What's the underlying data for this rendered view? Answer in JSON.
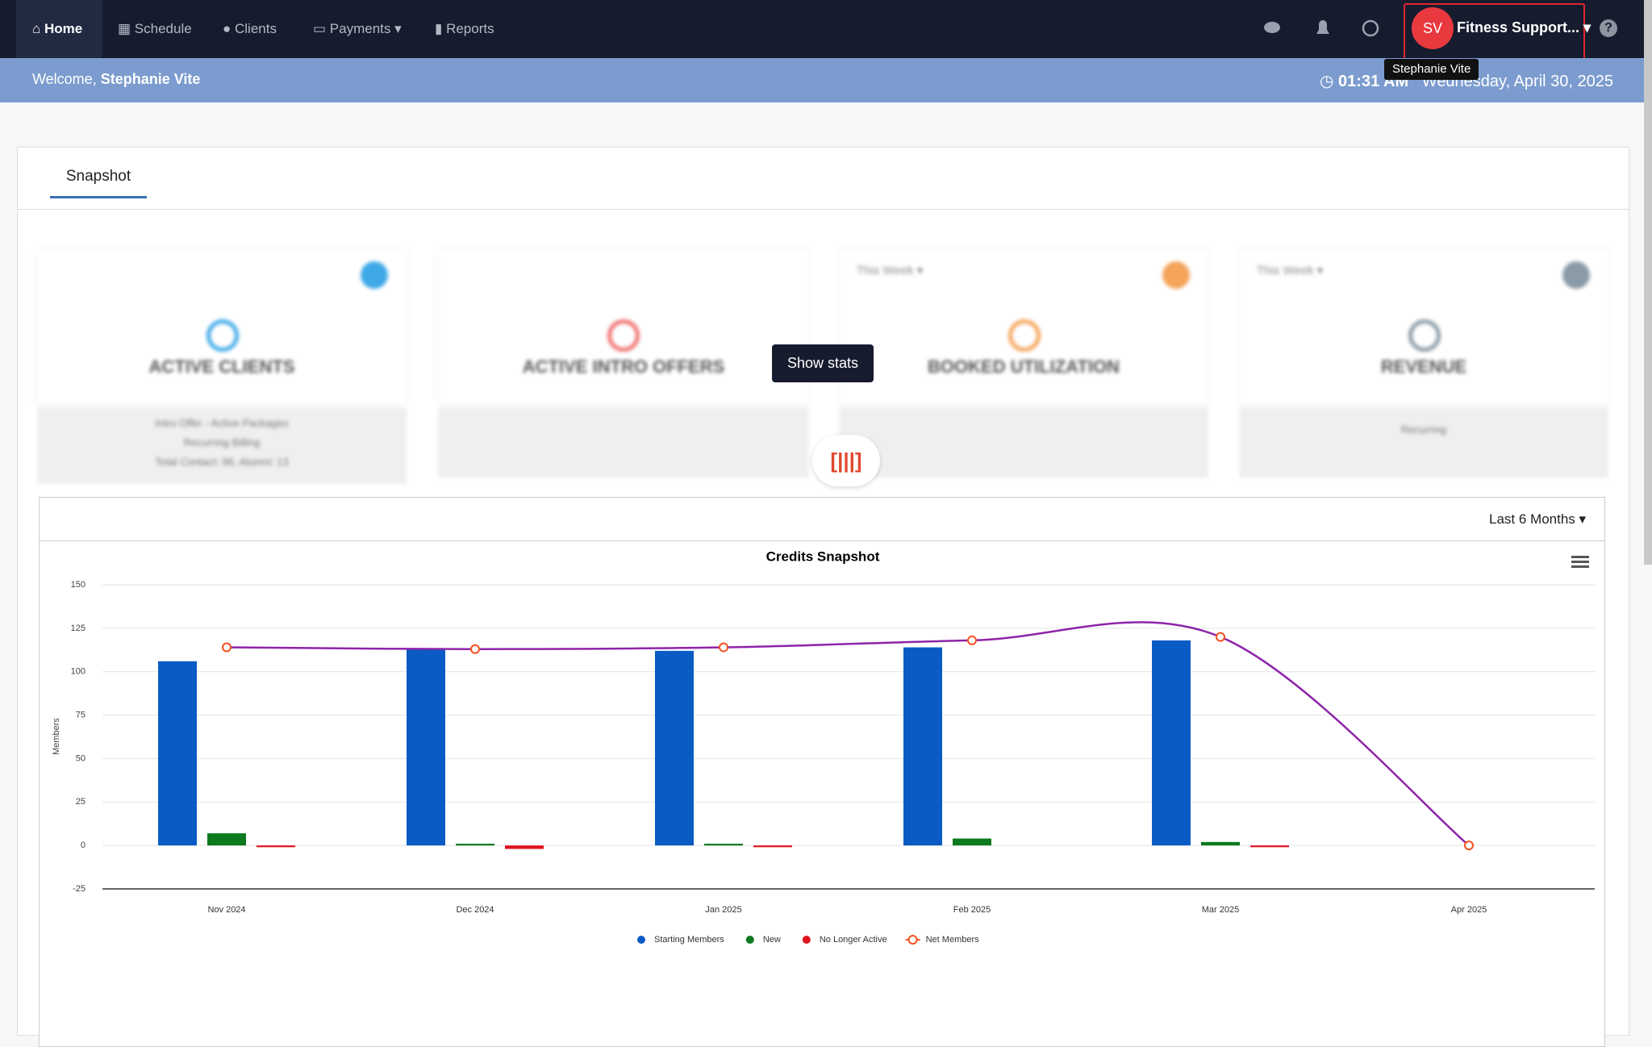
{
  "nav": {
    "items": [
      "Home",
      "Schedule",
      "Clients",
      "Payments",
      "Reports"
    ],
    "user_initials": "SV",
    "account": "Fitness Support...",
    "tooltip": "Stephanie Vite"
  },
  "header": {
    "welcome": "Welcome,",
    "user": "Stephanie Vite",
    "time": "01:31 AM",
    "date": "Wednesday, April 30, 2025"
  },
  "tabs": [
    "Snapshot"
  ],
  "cards": [
    {
      "title": "ACTIVE CLIENTS",
      "details": [
        "Intro Offer - Active Packages",
        "Recurring Billing",
        "Total Contact: 96, Alumni: 13"
      ]
    },
    {
      "title": "ACTIVE INTRO OFFERS"
    },
    {
      "title": "BOOKED UTILIZATION",
      "period": "This Week"
    },
    {
      "title": "REVENUE",
      "period": "This Week",
      "details": [
        "Recurring"
      ]
    }
  ],
  "show_stats": "Show stats",
  "range": "Last 6 Months",
  "chart_data": {
    "type": "bar",
    "title": "Credits Snapshot",
    "y_label": "Members",
    "categories": [
      "Nov 2024",
      "Dec 2024",
      "Jan 2025",
      "Feb 2025",
      "Mar 2025",
      "Apr 2025"
    ],
    "series": [
      {
        "name": "Starting Members",
        "color": "#0a5bc4",
        "values": [
          106,
          113,
          112,
          114,
          118,
          null
        ]
      },
      {
        "name": "New",
        "color": "#0d7a1f",
        "values": [
          7,
          1,
          1,
          4,
          2,
          null
        ]
      },
      {
        "name": "No Longer Active",
        "color": "#e0141e",
        "values": [
          -1,
          -2,
          -1,
          null,
          -1,
          null
        ]
      },
      {
        "name": "Net Members",
        "type": "line",
        "color": "#8e24aa",
        "marker_color": "#f4511e",
        "values": [
          114,
          113,
          114,
          118,
          120,
          0
        ]
      }
    ],
    "ylim": [
      -25,
      150
    ],
    "yticks": [
      -25,
      0,
      25,
      50,
      75,
      100,
      125,
      150
    ],
    "grid": true,
    "legend": "bottom"
  }
}
